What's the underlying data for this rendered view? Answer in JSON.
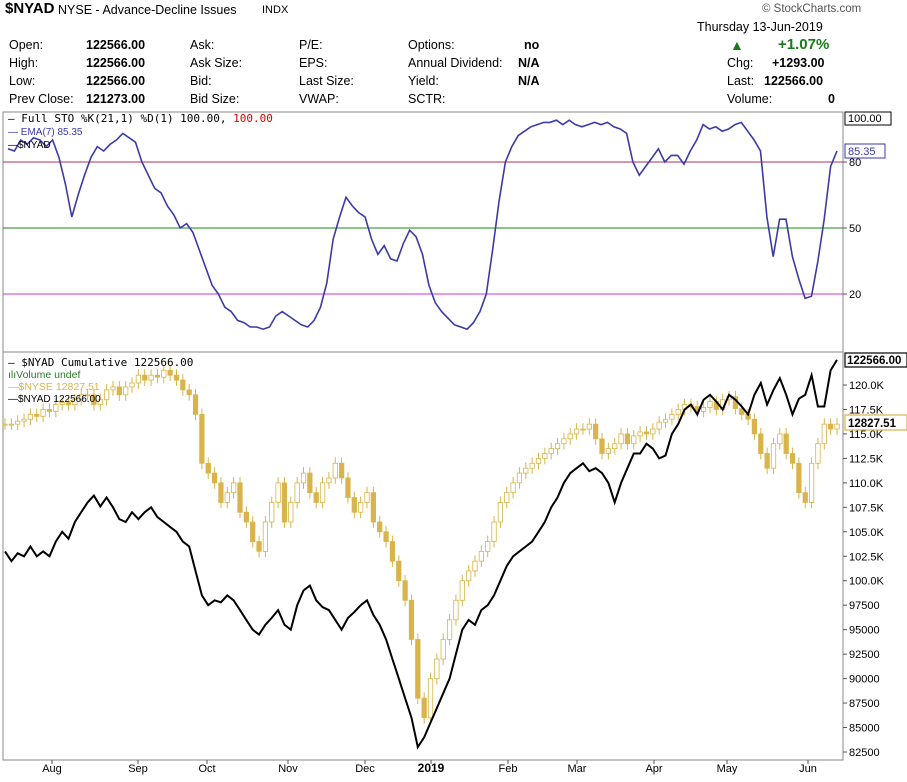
{
  "header": {
    "symbol": "$NYAD",
    "name": "NYSE - Advance-Decline Issues",
    "exchange": "INDX",
    "copyright": "© StockCharts.com",
    "date": "Thursday 13-Jun-2019",
    "change_pct": "+1.07%",
    "up_arrow": "▲",
    "quote": {
      "open_label": "Open:",
      "open": "122566.00",
      "high_label": "High:",
      "high": "122566.00",
      "low_label": "Low:",
      "low": "122566.00",
      "prev_label": "Prev Close:",
      "prev": "121273.00",
      "ask_label": "Ask:",
      "ask_size_label": "Ask Size:",
      "bid_label": "Bid:",
      "bid_size_label": "Bid Size:",
      "pe_label": "P/E:",
      "eps_label": "EPS:",
      "last_size_label": "Last Size:",
      "vwap_label": "VWAP:",
      "options_label": "Options:",
      "options": "no",
      "div_label": "Annual Dividend:",
      "div": "N/A",
      "yield_label": "Yield:",
      "yield": "N/A",
      "sctr_label": "SCTR:",
      "chg_label": "Chg:",
      "chg": "+1293.00",
      "last_label": "Last:",
      "last": "122566.00",
      "vol_label": "Volume:",
      "vol": "0"
    }
  },
  "colors": {
    "stoch": "#3a3aa8",
    "cumulative": "#000000",
    "nyse": "#d9b44a",
    "line80": "#b0305a",
    "line50": "#1a8a1a",
    "line20": "#cc33cc",
    "red": "#dd0000",
    "green": "#1a7a1a"
  },
  "chart_data": [
    {
      "type": "line",
      "legend": [
        {
          "prefix": "Full STO %K(21,1) %D(1) 100.00,",
          "value": "100.00"
        },
        {
          "text": "EMA(7) 85.35"
        },
        {
          "text": "$NYAD"
        }
      ],
      "ylim": [
        0,
        100
      ],
      "y_ticks": [
        20,
        50,
        80
      ],
      "y_top_label": "100.00",
      "last_value_label": "85.35",
      "reference_lines": [
        80,
        50,
        20
      ],
      "series": [
        {
          "values": [
            86,
            85,
            90,
            88,
            91,
            90,
            87,
            90,
            82,
            70,
            55,
            65,
            74,
            82,
            87,
            85,
            88,
            90,
            93,
            91,
            89,
            80,
            74,
            68,
            66,
            60,
            56,
            50,
            52,
            48,
            40,
            32,
            24,
            20,
            14,
            12,
            8,
            7,
            5,
            5,
            4,
            5,
            10,
            12,
            10,
            8,
            6,
            5,
            8,
            14,
            25,
            45,
            55,
            64,
            60,
            57,
            55,
            45,
            38,
            42,
            36,
            35,
            43,
            49,
            46,
            38,
            24,
            16,
            12,
            9,
            6,
            5,
            4,
            7,
            12,
            20,
            40,
            62,
            80,
            87,
            92,
            94,
            96,
            97,
            98,
            98,
            99,
            97,
            99,
            97,
            96,
            97,
            98,
            97,
            98,
            96,
            95,
            93,
            80,
            74,
            78,
            82,
            86,
            80,
            83,
            83,
            79,
            85,
            90,
            97,
            95,
            96,
            94,
            95,
            97,
            98,
            94,
            90,
            85,
            55,
            37,
            54,
            54,
            37,
            27,
            18,
            19,
            35,
            54,
            78,
            85
          ]
        }
      ]
    },
    {
      "type": "line",
      "legend": [
        {
          "text": "$NYAD Cumulative 122566.00"
        },
        {
          "text": "Volume undef"
        },
        {
          "text": "$NYSE 12827.51"
        },
        {
          "text": "$NYAD 122566.00"
        }
      ],
      "ylim": [
        81750,
        123500
      ],
      "y_ticks": [
        82500,
        85000,
        87500,
        90000,
        92500,
        95000,
        97500,
        100000,
        102500,
        105000,
        107500,
        110000,
        112500,
        115000,
        117500,
        120000
      ],
      "y_tick_labels": [
        "82500",
        "85000",
        "87500",
        "90000",
        "92500",
        "95000",
        "97500",
        "100.0K",
        "102.5K",
        "105.0K",
        "107.5K",
        "110.0K",
        "112.5K",
        "115.0K",
        "117.5K",
        "120.0K"
      ],
      "last_value_label": "122566.00",
      "nyse_last_label": "12827.51",
      "x_labels": [
        "Aug",
        "Sep",
        "Oct",
        "Nov",
        "Dec",
        "2019",
        "Feb",
        "Mar",
        "Apr",
        "May",
        "Jun"
      ],
      "series": [
        {
          "name": "$NYAD Cumulative",
          "values": [
            103000,
            102000,
            102800,
            102500,
            103500,
            102500,
            103000,
            102500,
            104000,
            105000,
            104300,
            106000,
            107000,
            108000,
            108700,
            107600,
            108500,
            107500,
            106300,
            106000,
            107000,
            106300,
            107000,
            107500,
            106500,
            106000,
            105500,
            105000,
            104000,
            103500,
            101000,
            98500,
            97500,
            98000,
            97800,
            98500,
            98000,
            97000,
            96000,
            95000,
            94500,
            95500,
            96200,
            97000,
            95500,
            95000,
            97500,
            99000,
            99500,
            98000,
            97300,
            97000,
            96000,
            95000,
            96200,
            96800,
            97500,
            98000,
            96500,
            95500,
            94000,
            92000,
            90000,
            88000,
            86000,
            83000,
            84000,
            85500,
            87000,
            88500,
            90000,
            92500,
            95000,
            96000,
            95500,
            97000,
            97500,
            98500,
            100000,
            101500,
            102500,
            103000,
            103500,
            104000,
            105000,
            106000,
            107500,
            108500,
            110000,
            111000,
            111500,
            112000,
            111200,
            111500,
            111000,
            110000,
            108000,
            110000,
            111500,
            113000,
            113000,
            114000,
            113500,
            112500,
            112800,
            115000,
            116000,
            117500,
            118000,
            117000,
            118500,
            119000,
            118300,
            117500,
            119000,
            118500,
            117800,
            117000,
            119000,
            120200,
            118000,
            119500,
            120700,
            119000,
            117000,
            118600,
            119000,
            121000,
            117800,
            117800,
            121500,
            122566
          ]
        },
        {
          "name": "$NYSE",
          "values": [
            116000,
            116000,
            116300,
            116500,
            117000,
            116800,
            117500,
            117300,
            118000,
            118200,
            118000,
            118500,
            119000,
            119000,
            118000,
            118500,
            119500,
            119800,
            119000,
            119800,
            120200,
            121000,
            120500,
            121000,
            120800,
            121500,
            121000,
            120500,
            119500,
            119000,
            117000,
            112000,
            111000,
            110000,
            108000,
            109000,
            110000,
            107000,
            106000,
            104000,
            103000,
            106000,
            108000,
            110000,
            106000,
            108000,
            110000,
            111000,
            109000,
            108000,
            110000,
            110500,
            112000,
            110500,
            108500,
            107000,
            108000,
            109000,
            106000,
            105000,
            104000,
            102000,
            100000,
            98000,
            94000,
            88000,
            86000,
            90000,
            92000,
            94000,
            96000,
            98000,
            100000,
            101000,
            102000,
            103000,
            104000,
            106000,
            108000,
            109000,
            110000,
            111000,
            111500,
            112000,
            112500,
            113000,
            113500,
            114000,
            114500,
            115000,
            115500,
            115500,
            116000,
            114500,
            113000,
            113500,
            114000,
            115000,
            114000,
            114800,
            115200,
            115000,
            115500,
            116200,
            116500,
            117000,
            117500,
            118000,
            117800,
            117300,
            117700,
            118300,
            117500,
            118500,
            118800,
            117600,
            117000,
            116500,
            115000,
            113000,
            111500,
            114000,
            115000,
            113000,
            112000,
            109000,
            108000,
            112000,
            114000,
            116000,
            115500,
            116000
          ]
        }
      ]
    }
  ]
}
